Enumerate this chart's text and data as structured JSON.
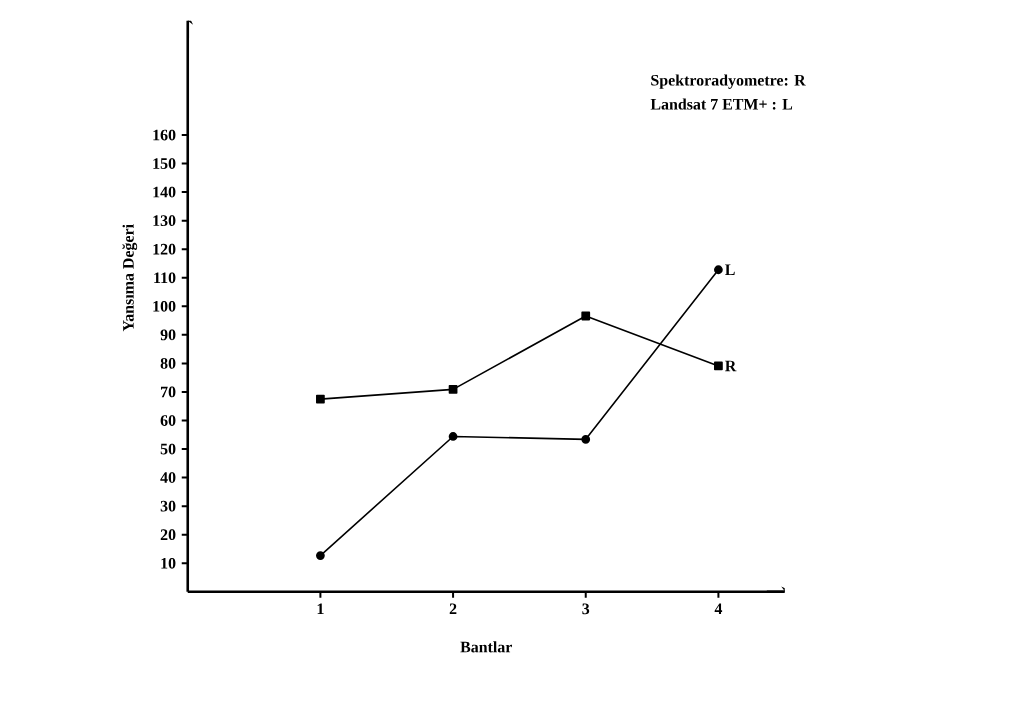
{
  "chart_data": {
    "type": "line",
    "xlabel": "Bantlar",
    "ylabel": "Yansıma Değeri",
    "categories": [
      "1",
      "2",
      "3",
      "4"
    ],
    "series": [
      {
        "name": "R",
        "color": "#000000",
        "marker": "square",
        "values": [
          67.5,
          70.9,
          96.6,
          79.1
        ]
      },
      {
        "name": "L",
        "color": "#000000",
        "marker": "circle",
        "values": [
          12.7,
          54.4,
          53.4,
          112.8
        ]
      }
    ],
    "ylim": [
      0,
      200
    ],
    "yticks": [
      10,
      20,
      30,
      40,
      50,
      60,
      70,
      80,
      90,
      100,
      110,
      120,
      130,
      140,
      150,
      160
    ],
    "annotations": [
      "Spektroradyometre: R",
      "Landsat 7 ETM+    : L"
    ],
    "grid": false,
    "legend": false,
    "line_style": "solid"
  }
}
